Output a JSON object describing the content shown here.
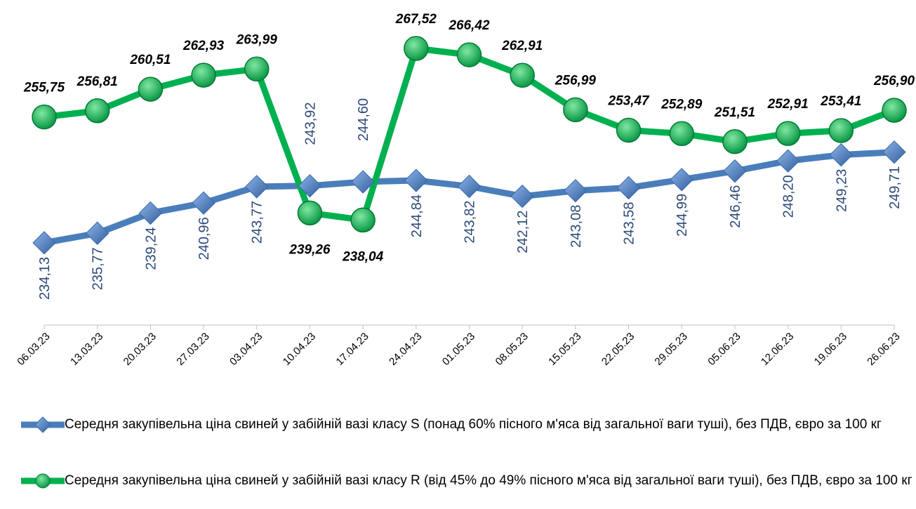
{
  "chart_data": {
    "type": "line",
    "categories": [
      "06.03.23",
      "13.03.23",
      "20.03.23",
      "27.03.23",
      "03.04.23",
      "10.04.23",
      "17.04.23",
      "24.04.23",
      "01.05.23",
      "08.05.23",
      "15.05.23",
      "22.05.23",
      "29.05.23",
      "05.06.23",
      "12.06.23",
      "19.06.23",
      "26.06.23"
    ],
    "ylim": [
      220,
      275
    ],
    "series": [
      {
        "name": "Середня закупівельна ціна свиней у забійній вазі класу S (понад 60% пісного м'яса від загальної ваги туші), без ПДВ, євро за 100 кг",
        "color": "#4a7ebb",
        "marker": "diamond",
        "values": [
          234.13,
          235.77,
          239.24,
          240.96,
          243.77,
          243.92,
          244.6,
          244.84,
          243.82,
          242.12,
          243.08,
          243.58,
          244.99,
          246.46,
          248.2,
          249.23,
          249.71
        ],
        "value_labels": [
          "234,13",
          "235,77",
          "239,24",
          "240,96",
          "243,77",
          "243,92",
          "244,60",
          "244,84",
          "243,82",
          "242,12",
          "243,08",
          "243,58",
          "244,99",
          "246,46",
          "248,20",
          "249,23",
          "249,71"
        ]
      },
      {
        "name": "Середня закупівельна ціна свиней у забійній вазі класу R (від 45% до 49% пісного м'яса від загальної ваги туші), без ПДВ, євро за 100 кг",
        "color": "#00b050",
        "marker": "circle",
        "values": [
          255.75,
          256.81,
          260.51,
          262.93,
          263.99,
          239.26,
          238.04,
          267.52,
          266.42,
          262.91,
          256.99,
          253.47,
          252.89,
          251.51,
          252.91,
          253.41,
          256.9
        ],
        "value_labels": [
          "255,75",
          "256,81",
          "260,51",
          "262,93",
          "263,99",
          "239,26",
          "238,04",
          "267,52",
          "266,42",
          "262,91",
          "256,99",
          "253,47",
          "252,89",
          "251,51",
          "252,91",
          "253,41",
          "256,90"
        ]
      }
    ]
  }
}
